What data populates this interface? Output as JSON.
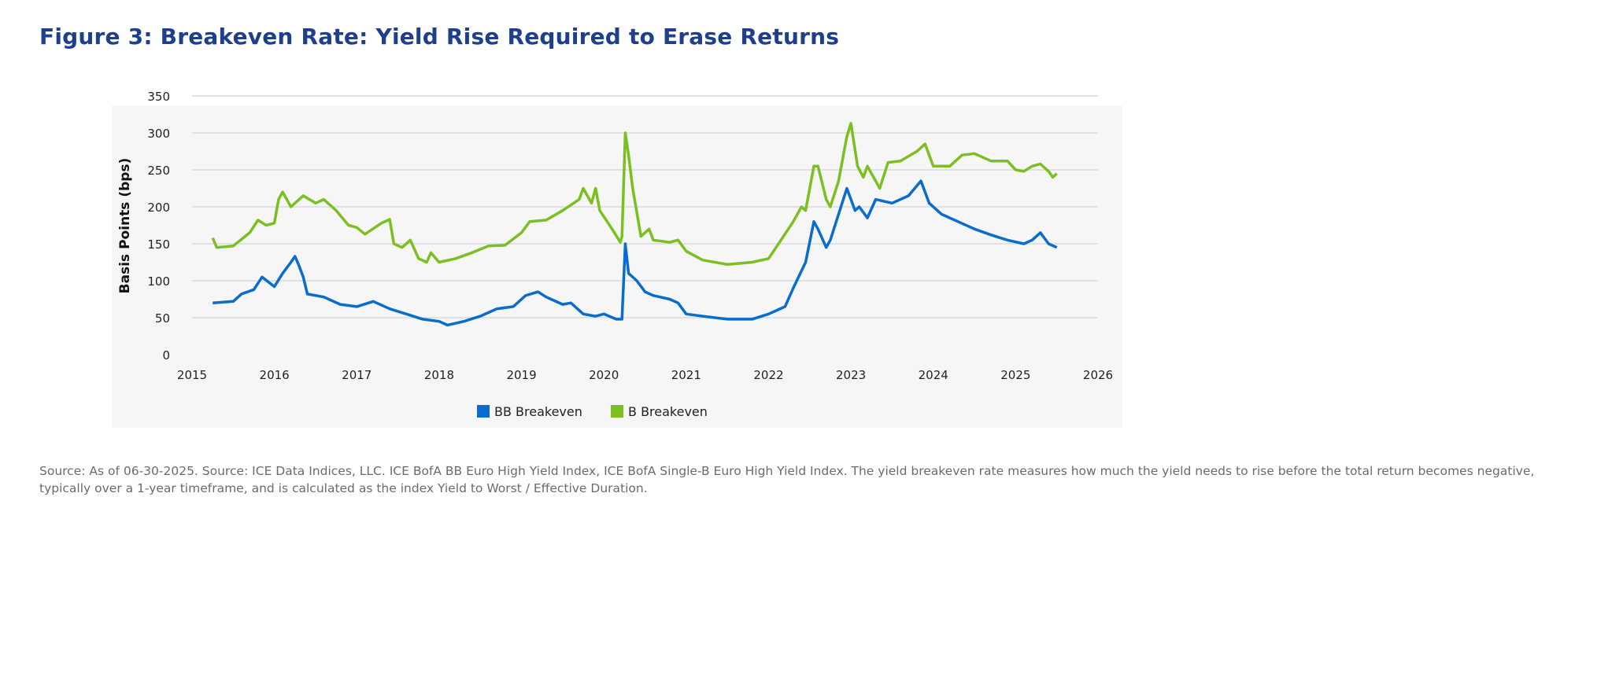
{
  "title": "Figure 3: Breakeven Rate: Yield Rise Required to Erase Returns",
  "footnote": "Source: As of 06-30-2025. Source: ICE Data Indices, LLC. ICE BofA BB Euro High Yield Index, ICE BofA Single-B Euro High Yield Index. The yield breakeven rate measures how much the yield needs to rise before the total return becomes negative, typically over a 1-year timeframe, and is calculated as the index Yield to Worst / Effective Duration.",
  "chart_data": {
    "type": "line",
    "title": "Figure 3: Breakeven Rate: Yield Rise Required to Erase Returns",
    "xlabel": "",
    "ylabel": "Basis Points (bps)",
    "xlim": [
      2015,
      2026
    ],
    "ylim": [
      0,
      350
    ],
    "xticks": [
      "2015",
      "2016",
      "2017",
      "2018",
      "2019",
      "2020",
      "2021",
      "2022",
      "2023",
      "2024",
      "2025",
      "2026"
    ],
    "yticks": [
      "0",
      "50",
      "100",
      "150",
      "200",
      "250",
      "300",
      "350"
    ],
    "grid": true,
    "legend_position": "bottom-center",
    "series": [
      {
        "name": "BB Breakeven",
        "color": "#0a6ccc",
        "x": [
          2015.25,
          2015.5,
          2015.6,
          2015.75,
          2015.85,
          2016.0,
          2016.1,
          2016.2,
          2016.25,
          2016.3,
          2016.35,
          2016.4,
          2016.6,
          2016.8,
          2017.0,
          2017.2,
          2017.4,
          2017.6,
          2017.8,
          2018.0,
          2018.1,
          2018.3,
          2018.5,
          2018.7,
          2018.9,
          2019.05,
          2019.2,
          2019.3,
          2019.5,
          2019.6,
          2019.75,
          2019.9,
          2020.0,
          2020.15,
          2020.22,
          2020.26,
          2020.3,
          2020.4,
          2020.5,
          2020.6,
          2020.8,
          2020.9,
          2021.0,
          2021.2,
          2021.5,
          2021.8,
          2022.0,
          2022.2,
          2022.3,
          2022.45,
          2022.55,
          2022.6,
          2022.7,
          2022.75,
          2022.85,
          2022.95,
          2023.05,
          2023.1,
          2023.2,
          2023.3,
          2023.5,
          2023.7,
          2023.85,
          2023.95,
          2024.1,
          2024.3,
          2024.5,
          2024.7,
          2024.9,
          2025.1,
          2025.2,
          2025.3,
          2025.4,
          2025.5
        ],
        "values": [
          70,
          72,
          82,
          88,
          105,
          92,
          110,
          125,
          133,
          120,
          105,
          82,
          78,
          68,
          65,
          72,
          62,
          55,
          48,
          45,
          40,
          45,
          52,
          62,
          65,
          80,
          85,
          78,
          68,
          70,
          55,
          52,
          55,
          48,
          48,
          150,
          110,
          100,
          85,
          80,
          75,
          70,
          55,
          52,
          48,
          48,
          55,
          65,
          90,
          125,
          180,
          170,
          145,
          155,
          190,
          225,
          195,
          200,
          185,
          210,
          205,
          215,
          235,
          205,
          190,
          180,
          170,
          162,
          155,
          150,
          155,
          165,
          150,
          145
        ]
      },
      {
        "name": "B Breakeven",
        "color": "#7bbf22",
        "x": [
          2015.25,
          2015.3,
          2015.5,
          2015.7,
          2015.8,
          2015.9,
          2016.0,
          2016.05,
          2016.1,
          2016.2,
          2016.35,
          2016.5,
          2016.6,
          2016.75,
          2016.9,
          2017.0,
          2017.1,
          2017.3,
          2017.4,
          2017.45,
          2017.55,
          2017.65,
          2017.75,
          2017.85,
          2017.9,
          2018.0,
          2018.2,
          2018.4,
          2018.6,
          2018.8,
          2019.0,
          2019.1,
          2019.3,
          2019.5,
          2019.7,
          2019.75,
          2019.85,
          2019.9,
          2019.95,
          2020.1,
          2020.2,
          2020.22,
          2020.26,
          2020.3,
          2020.35,
          2020.45,
          2020.55,
          2020.6,
          2020.8,
          2020.9,
          2021.0,
          2021.2,
          2021.5,
          2021.8,
          2022.0,
          2022.15,
          2022.3,
          2022.4,
          2022.45,
          2022.55,
          2022.6,
          2022.7,
          2022.75,
          2022.85,
          2022.95,
          2023.0,
          2023.08,
          2023.15,
          2023.2,
          2023.3,
          2023.35,
          2023.45,
          2023.6,
          2023.8,
          2023.9,
          2024.0,
          2024.2,
          2024.35,
          2024.5,
          2024.7,
          2024.9,
          2025.0,
          2025.1,
          2025.2,
          2025.3,
          2025.4,
          2025.45,
          2025.5
        ],
        "values": [
          158,
          145,
          147,
          165,
          182,
          175,
          178,
          210,
          220,
          200,
          215,
          205,
          210,
          195,
          175,
          172,
          163,
          178,
          183,
          150,
          145,
          155,
          130,
          125,
          138,
          125,
          130,
          138,
          147,
          148,
          165,
          180,
          182,
          195,
          210,
          225,
          205,
          225,
          195,
          170,
          152,
          160,
          300,
          270,
          225,
          160,
          170,
          155,
          152,
          155,
          140,
          128,
          122,
          125,
          130,
          155,
          180,
          200,
          195,
          255,
          255,
          210,
          200,
          235,
          295,
          313,
          255,
          240,
          255,
          235,
          225,
          260,
          262,
          275,
          285,
          255,
          255,
          270,
          272,
          262,
          262,
          250,
          248,
          255,
          258,
          248,
          240,
          245
        ]
      }
    ]
  }
}
